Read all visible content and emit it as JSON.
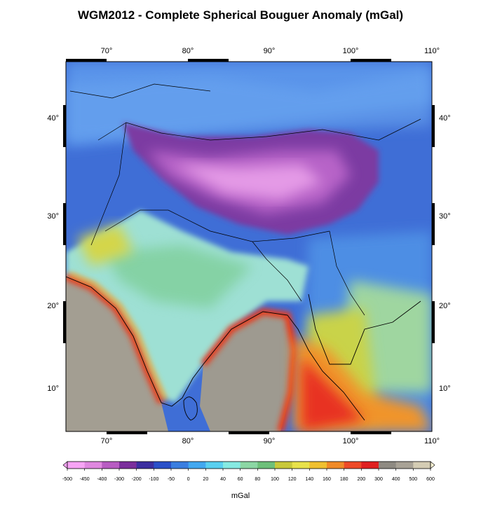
{
  "title": "WGM2012 - Complete Spherical Bouguer Anomaly (mGal)",
  "map": {
    "extent": {
      "lon": [
        65,
        110
      ],
      "lat": [
        5,
        46
      ]
    },
    "lon_ticks": [
      "70°",
      "80°",
      "90°",
      "100°",
      "110°"
    ],
    "lat_ticks": [
      "10°",
      "20°",
      "30°",
      "40°"
    ],
    "features": [
      "tibetan-plateau-low",
      "indian-subcontinent",
      "arabian-sea-high",
      "bay-of-bengal-high",
      "coastlines",
      "country-borders"
    ]
  },
  "colorbar": {
    "unit": "mGal",
    "ticks": [
      "-500",
      "-450",
      "-400",
      "-300",
      "-200",
      "-100",
      "-50",
      "0",
      "20",
      "40",
      "60",
      "80",
      "100",
      "120",
      "140",
      "160",
      "180",
      "200",
      "300",
      "400",
      "500",
      "600"
    ],
    "colors": [
      "#f7a4f5",
      "#e088e0",
      "#b85cc2",
      "#7b2f9c",
      "#3c2fa0",
      "#2a50c8",
      "#3a7ee0",
      "#42a8f0",
      "#5ad0f0",
      "#86eae2",
      "#8cd7a4",
      "#6ec07a",
      "#c8c83a",
      "#e8e24a",
      "#f0c030",
      "#f08a28",
      "#ee4a28",
      "#e02020",
      "#8e8a82",
      "#a8a296",
      "#d4ccb4",
      "#fff6d6"
    ]
  }
}
